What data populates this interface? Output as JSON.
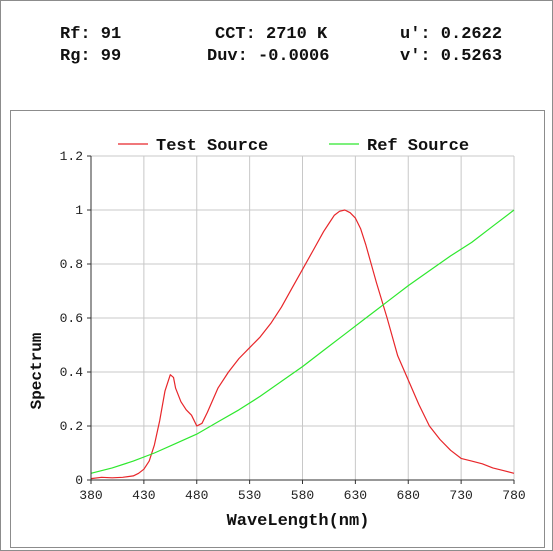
{
  "metrics": {
    "rf": "Rf: 91",
    "rg": "Rg: 99",
    "cct": "CCT: 2710 K",
    "duv": "Duv: -0.0006",
    "u_prime": "u': 0.2622",
    "v_prime": "v': 0.5263"
  },
  "colors": {
    "test_source": "#e8262a",
    "ref_source": "#2ee82e",
    "grid": "#c8c8c8",
    "axis": "#303030"
  },
  "chart_data": {
    "type": "line",
    "xlabel": "WaveLength(nm)",
    "ylabel": "Spectrum",
    "xlim": [
      380,
      780
    ],
    "ylim": [
      0,
      1.2
    ],
    "x_ticks": [
      "380",
      "430",
      "480",
      "530",
      "580",
      "630",
      "680",
      "730",
      "780"
    ],
    "y_ticks": [
      "0",
      "0.2",
      "0.4",
      "0.6",
      "0.8",
      "1",
      "1.2"
    ],
    "grid": true,
    "legend_position": "top",
    "series": [
      {
        "name": "Test Source",
        "x": [
          380,
          390,
          400,
          410,
          420,
          425,
          430,
          435,
          440,
          445,
          450,
          455,
          458,
          460,
          465,
          470,
          475,
          480,
          485,
          490,
          500,
          510,
          520,
          530,
          540,
          550,
          560,
          570,
          580,
          590,
          600,
          605,
          610,
          615,
          620,
          625,
          630,
          635,
          640,
          645,
          650,
          660,
          670,
          680,
          690,
          700,
          710,
          720,
          730,
          740,
          750,
          760,
          770,
          780
        ],
        "values": [
          0.005,
          0.01,
          0.008,
          0.01,
          0.015,
          0.025,
          0.04,
          0.07,
          0.13,
          0.22,
          0.33,
          0.39,
          0.38,
          0.34,
          0.29,
          0.26,
          0.24,
          0.2,
          0.21,
          0.25,
          0.34,
          0.4,
          0.45,
          0.49,
          0.53,
          0.58,
          0.64,
          0.71,
          0.78,
          0.85,
          0.92,
          0.95,
          0.98,
          0.995,
          1.0,
          0.99,
          0.97,
          0.93,
          0.87,
          0.8,
          0.73,
          0.6,
          0.46,
          0.37,
          0.28,
          0.2,
          0.15,
          0.11,
          0.08,
          0.07,
          0.06,
          0.045,
          0.035,
          0.025
        ]
      },
      {
        "name": "Ref Source",
        "x": [
          380,
          400,
          420,
          440,
          460,
          480,
          500,
          520,
          540,
          560,
          580,
          600,
          620,
          640,
          660,
          680,
          700,
          720,
          740,
          760,
          780
        ],
        "values": [
          0.025,
          0.045,
          0.07,
          0.1,
          0.135,
          0.17,
          0.215,
          0.26,
          0.31,
          0.365,
          0.42,
          0.48,
          0.54,
          0.6,
          0.66,
          0.72,
          0.775,
          0.83,
          0.88,
          0.94,
          1.0
        ]
      }
    ]
  }
}
